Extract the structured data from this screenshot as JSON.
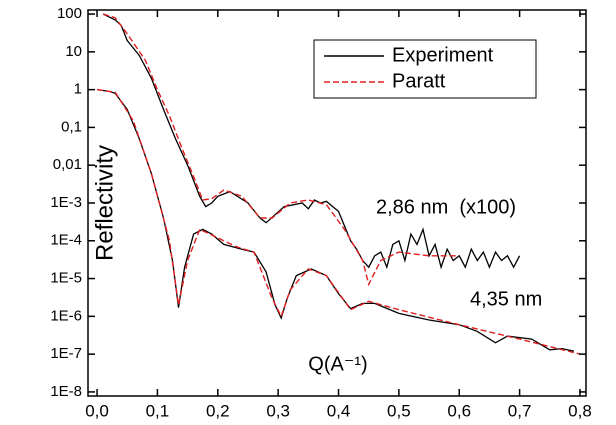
{
  "chart_data": {
    "type": "line",
    "yscale": "log",
    "y_label": "Reflectivity",
    "x_label": "Q(A⁻¹)",
    "annotations": [
      "2,86 nm  (x100)",
      "4,35 nm"
    ],
    "legend": "upper right",
    "xlim": [
      -0.015,
      0.81
    ],
    "ylim": [
      7.8e-09,
      128
    ],
    "xticks": [
      {
        "value": 0.0,
        "label": "0,0"
      },
      {
        "value": 0.1,
        "label": "0,1"
      },
      {
        "value": 0.2,
        "label": "0,2"
      },
      {
        "value": 0.3,
        "label": "0,3"
      },
      {
        "value": 0.4,
        "label": "0,4"
      },
      {
        "value": 0.5,
        "label": "0,5"
      },
      {
        "value": 0.6,
        "label": "0,6"
      },
      {
        "value": 0.7,
        "label": "0,7"
      },
      {
        "value": 0.8,
        "label": "0,8"
      }
    ],
    "yticks": [
      100,
      10,
      1,
      {
        "value": 0.1,
        "label": "0,1"
      },
      {
        "value": 0.01,
        "label": "0,01"
      },
      {
        "value": 0.001,
        "label": "1E-3"
      },
      {
        "value": 0.0001,
        "label": "1E-4"
      },
      {
        "value": 1e-05,
        "label": "1E-5"
      },
      {
        "value": 1e-06,
        "label": "1E-6"
      },
      {
        "value": 1e-07,
        "label": "1E-7"
      },
      {
        "value": 1e-08,
        "label": "1E-8"
      }
    ],
    "series": [
      {
        "name": "Experiment",
        "color": "#000000",
        "style": "solid",
        "x": [
          0.01,
          0.03,
          0.04,
          0.05,
          0.07,
          0.09,
          0.11,
          0.13,
          0.15,
          0.17,
          0.18,
          0.19,
          0.2,
          0.22,
          0.25,
          0.27,
          0.28,
          0.31,
          0.34,
          0.35,
          0.36,
          0.37,
          0.38,
          0.4,
          0.42,
          0.43,
          0.44,
          0.45,
          0.46,
          0.47,
          0.48,
          0.49,
          0.5,
          0.51,
          0.52,
          0.53,
          0.54,
          0.55,
          0.56,
          0.57,
          0.58,
          0.59,
          0.6,
          0.61,
          0.62,
          0.63,
          0.64,
          0.65,
          0.66,
          0.67,
          0.68,
          0.69,
          0.7
        ],
        "values": [
          100,
          70,
          50,
          20,
          8,
          2,
          0.3,
          0.05,
          0.01,
          0.0015,
          0.0008,
          0.001,
          0.0015,
          0.002,
          0.001,
          0.0004,
          0.0003,
          0.0008,
          0.001,
          0.0007,
          0.0012,
          0.001,
          0.0011,
          0.0006,
          0.0001,
          6e-05,
          3e-05,
          2e-05,
          4e-05,
          5e-05,
          2e-05,
          8e-05,
          0.0001,
          3e-05,
          0.00015,
          8e-05,
          0.0002,
          4e-05,
          8e-05,
          2e-05,
          6e-05,
          3e-05,
          4e-05,
          2e-05,
          6e-05,
          3e-05,
          5e-05,
          2e-05,
          5e-05,
          3e-05,
          4e-05,
          2e-05,
          4e-05
        ]
      },
      {
        "name": "Paratt",
        "color": "#e02020",
        "style": "dashed",
        "x": [
          0.01,
          0.03,
          0.05,
          0.08,
          0.1,
          0.12,
          0.14,
          0.16,
          0.175,
          0.19,
          0.21,
          0.24,
          0.27,
          0.29,
          0.32,
          0.35,
          0.38,
          0.41,
          0.44,
          0.45,
          0.47,
          0.5,
          0.55,
          0.6
        ],
        "values": [
          100,
          80,
          30,
          6,
          1,
          0.2,
          0.03,
          0.005,
          0.0012,
          0.0013,
          0.0022,
          0.0015,
          0.0004,
          0.0004,
          0.001,
          0.0012,
          0.0009,
          0.0002,
          3e-05,
          7e-06,
          3e-05,
          5e-05,
          4e-05,
          4e-05
        ]
      },
      {
        "color": "#000000",
        "style": "solid",
        "x": [
          0.0,
          0.02,
          0.03,
          0.05,
          0.07,
          0.09,
          0.11,
          0.125,
          0.135,
          0.145,
          0.16,
          0.175,
          0.19,
          0.21,
          0.24,
          0.26,
          0.28,
          0.295,
          0.305,
          0.315,
          0.33,
          0.355,
          0.38,
          0.4,
          0.42,
          0.44,
          0.46,
          0.5,
          0.55,
          0.6,
          0.63,
          0.66,
          0.68,
          0.72,
          0.75,
          0.77,
          0.79
        ],
        "values": [
          1,
          0.9,
          0.8,
          0.3,
          0.05,
          0.006,
          0.0004,
          3e-05,
          1.7e-06,
          2e-05,
          0.00015,
          0.0002,
          0.00015,
          8e-05,
          6e-05,
          5e-05,
          1.5e-05,
          2e-06,
          9e-07,
          3e-06,
          1.2e-05,
          1.8e-05,
          1.2e-05,
          4e-06,
          1.6e-06,
          2.2e-06,
          2.2e-06,
          1.2e-06,
          8e-07,
          6e-07,
          4e-07,
          2e-07,
          3e-07,
          2.5e-07,
          1.3e-07,
          1.4e-07,
          1.2e-07
        ]
      },
      {
        "color": "#e02020",
        "style": "dashed",
        "x": [
          0.0,
          0.03,
          0.06,
          0.09,
          0.12,
          0.135,
          0.15,
          0.17,
          0.2,
          0.23,
          0.26,
          0.29,
          0.305,
          0.32,
          0.35,
          0.38,
          0.42,
          0.45,
          0.5,
          0.6,
          0.7,
          0.8
        ],
        "values": [
          1,
          0.85,
          0.15,
          0.006,
          0.0001,
          2e-06,
          3e-05,
          0.0002,
          0.00012,
          7e-05,
          5e-05,
          3e-06,
          1e-06,
          5e-06,
          1.8e-05,
          1.2e-05,
          1.5e-06,
          2.5e-06,
          1.5e-06,
          6e-07,
          2.5e-07,
          1e-07
        ]
      }
    ]
  }
}
